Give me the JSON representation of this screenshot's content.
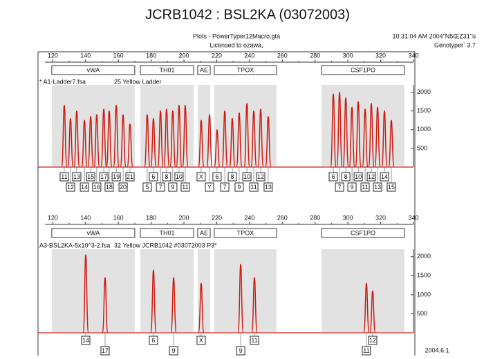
{
  "header": {
    "title": "JCRB1042 : BSL2KA (03072003)",
    "program": "Plots - PowerTyper12Macro.gta",
    "license": "Licensed to ozawa,",
    "time": "10:31:04  AM 2004\"N5ŒZ31\"ú",
    "version": "Genotyper` 3.7"
  },
  "footer": "2004.6.1",
  "chart_data": [
    {
      "type": "peaks",
      "file": "* A1-Ladder7.fsa",
      "sample": "25 Yellow  Ladder",
      "color": "#cc1a10",
      "xlim": [
        111,
        340
      ],
      "xticks": [
        120,
        140,
        160,
        180,
        200,
        220,
        240,
        260,
        280,
        300,
        320,
        340
      ],
      "ylim": [
        0,
        2250
      ],
      "yticks": [
        500,
        1000,
        1500,
        2000
      ],
      "markers": [
        {
          "name": "vWA",
          "range": [
            119.4,
            170.0
          ]
        },
        {
          "name": "TH01",
          "range": [
            173.4,
            205.9
          ]
        },
        {
          "name": "AE",
          "range": [
            208.4,
            216.0
          ]
        },
        {
          "name": "TPOX",
          "range": [
            218.5,
            256.5
          ]
        },
        {
          "name": "CSF1PO",
          "range": [
            283.9,
            334.5
          ]
        }
      ],
      "x": [
        127.0,
        130.8,
        134.6,
        139.3,
        143.1,
        146.8,
        151.1,
        154.4,
        158.7,
        162.9,
        167.1,
        177.6,
        181.4,
        185.7,
        189.4,
        193.2,
        197.0,
        200.8,
        210.5,
        215.6,
        220.2,
        224.9,
        229.5,
        233.7,
        238.4,
        242.6,
        246.8,
        251.4,
        291.1,
        294.9,
        298.7,
        302.5,
        306.3,
        310.5,
        314.3,
        318.1,
        322.3,
        326.5
      ],
      "values": [
        1650,
        1300,
        1500,
        1250,
        1350,
        1400,
        1550,
        1500,
        1650,
        1400,
        1150,
        1400,
        1300,
        1500,
        1550,
        1500,
        1650,
        1650,
        1250,
        1400,
        1000,
        1500,
        1300,
        1450,
        1700,
        1500,
        1550,
        1350,
        1950,
        2000,
        1850,
        1600,
        1750,
        1550,
        1700,
        1600,
        1500,
        1250
      ],
      "labels": [
        "11",
        "12",
        "13",
        "14",
        "15",
        "16",
        "17",
        "18",
        "19",
        "20",
        "21",
        "5",
        "6",
        "7",
        "8",
        "9",
        "10",
        "11",
        "X",
        "Y",
        "6",
        "7",
        "8",
        "9",
        "10",
        "11",
        "12",
        "13",
        "6",
        "7",
        "8",
        "9",
        "10",
        "11",
        "12",
        "13",
        "14",
        "15"
      ]
    },
    {
      "type": "peaks",
      "file": "A3-BSL2KA-5x10^3-2.fsa",
      "sample": "32 Yellow  JCRB1042 #03072003 P3*",
      "color": "#cc1a10",
      "xlim": [
        111,
        340
      ],
      "xticks": [
        120,
        140,
        160,
        180,
        200,
        220,
        240,
        260,
        280,
        300,
        320,
        340
      ],
      "ylim": [
        0,
        2250
      ],
      "yticks": [
        500,
        1000,
        1500,
        2000
      ],
      "markers": [
        {
          "name": "vWA",
          "range": [
            119.4,
            170.0
          ]
        },
        {
          "name": "TH01",
          "range": [
            173.4,
            205.9
          ]
        },
        {
          "name": "AE",
          "range": [
            208.4,
            216.0
          ]
        },
        {
          "name": "TPOX",
          "range": [
            218.5,
            256.5
          ]
        },
        {
          "name": "CSF1PO",
          "range": [
            283.9,
            334.5
          ]
        }
      ],
      "x": [
        140.1,
        151.9,
        181.4,
        193.7,
        210.5,
        234.6,
        243.0,
        311.3,
        315.1
      ],
      "values": [
        2050,
        1450,
        1650,
        1450,
        1300,
        1800,
        1450,
        1300,
        1100
      ],
      "labels": [
        "14",
        "17",
        "6",
        "9",
        "X",
        "9",
        "11",
        "11",
        "12"
      ]
    }
  ]
}
